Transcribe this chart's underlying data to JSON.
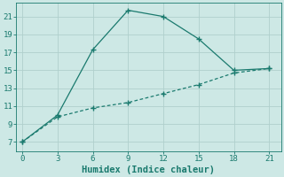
{
  "xlabel": "Humidex (Indice chaleur)",
  "line1_x": [
    0,
    3,
    6,
    9,
    12,
    15,
    18,
    21
  ],
  "line1_y": [
    7,
    10,
    17.3,
    21.7,
    21.0,
    18.5,
    15.0,
    15.2
  ],
  "line2_x": [
    0,
    3,
    6,
    9,
    12,
    15,
    18,
    21
  ],
  "line2_y": [
    7,
    9.8,
    10.8,
    11.4,
    12.4,
    13.4,
    14.7,
    15.2
  ],
  "line_color": "#1a7a6e",
  "bg_color": "#cde8e5",
  "grid_color": "#b0d0cc",
  "xlim": [
    -0.5,
    22
  ],
  "ylim": [
    6.0,
    22.5
  ],
  "xticks": [
    0,
    3,
    6,
    9,
    12,
    15,
    18,
    21
  ],
  "yticks": [
    7,
    9,
    11,
    13,
    15,
    17,
    19,
    21
  ],
  "tick_fontsize": 6.5,
  "xlabel_fontsize": 7.5
}
